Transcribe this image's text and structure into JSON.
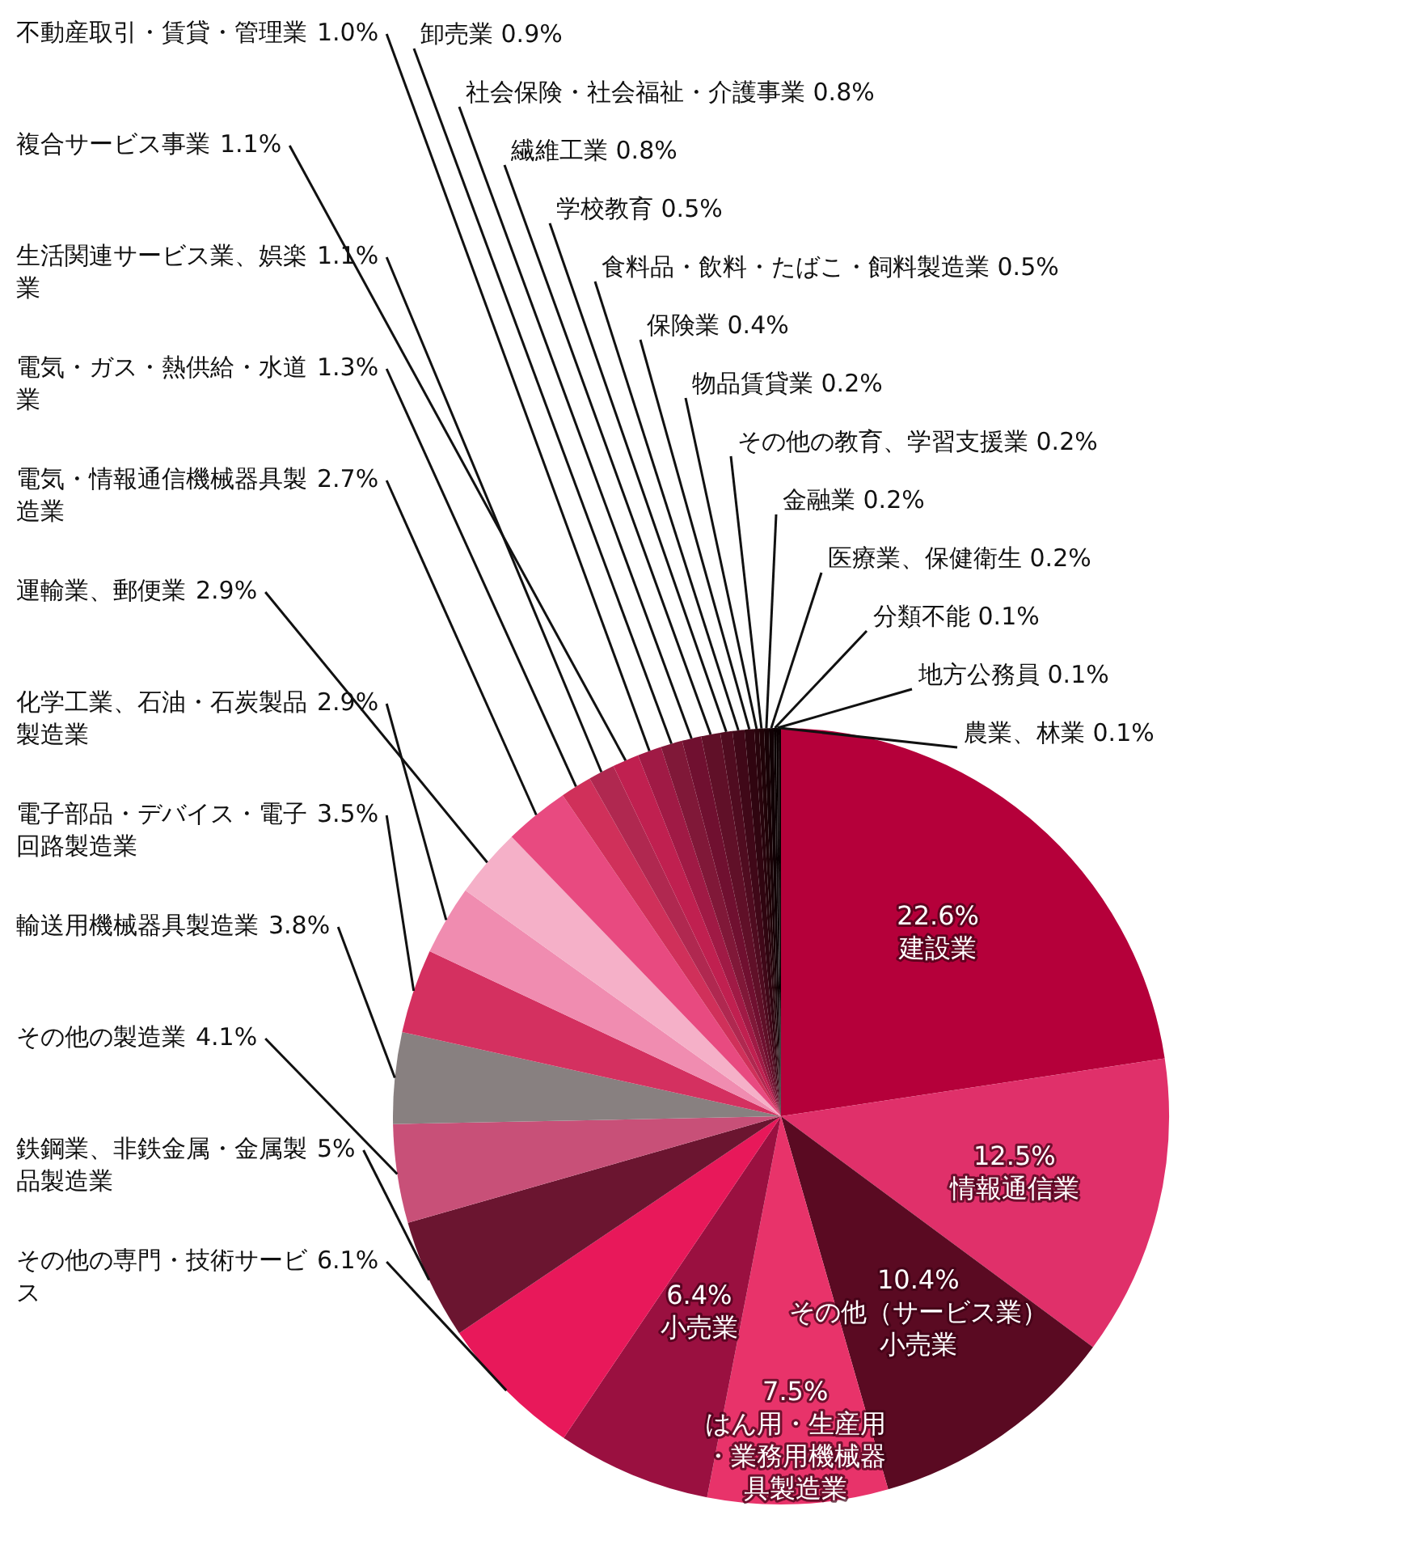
{
  "chart_data": {
    "type": "pie",
    "categories": [
      "建設業",
      "情報通信業",
      "その他（サービス業）小売業",
      "はん用・生産用・業務用機械器具製造業",
      "小売業",
      "その他の専門・技術サービス",
      "鉄鋼業、非鉄金属・金属製品製造業",
      "その他の製造業",
      "輸送用機械器具製造業",
      "電子部品・デバイス・電子回路製造業",
      "化学工業、石油・石炭製品製造業",
      "運輸業、郵便業",
      "電気・情報通信機械器具製造業",
      "電気・ガス・熱供給・水道業",
      "生活関連サービス業、娯楽業",
      "複合サービス事業",
      "不動産取引・賃貸・管理業",
      "卸売業",
      "社会保険・社会福祉・介護事業",
      "繊維工業",
      "学校教育",
      "食料品・飲料・たばこ・飼料製造業",
      "保険業",
      "物品賃貸業",
      "その他の教育、学習支援業",
      "金融業",
      "医療業、保健衛生",
      "分類不能",
      "地方公務員",
      "農業、林業"
    ],
    "values": [
      22.6,
      12.5,
      10.4,
      7.5,
      6.4,
      6.1,
      5,
      4.1,
      3.8,
      3.5,
      2.9,
      2.9,
      2.7,
      1.3,
      1.1,
      1.1,
      1.0,
      0.9,
      0.8,
      0.8,
      0.5,
      0.5,
      0.4,
      0.2,
      0.2,
      0.2,
      0.2,
      0.1,
      0.1,
      0.1
    ],
    "value_labels": [
      "22.6%",
      "12.5%",
      "10.4%",
      "7.5%",
      "6.4%",
      "6.1%",
      "5%",
      "4.1%",
      "3.8%",
      "3.5%",
      "2.9%",
      "2.9%",
      "2.7%",
      "1.3%",
      "1.1%",
      "1.1%",
      "1.0%",
      "0.9%",
      "0.8%",
      "0.8%",
      "0.5%",
      "0.5%",
      "0.4%",
      "0.2%",
      "0.2%",
      "0.2%",
      "0.2%",
      "0.1%",
      "0.1%",
      "0.1%"
    ],
    "colors": [
      "#b5003a",
      "#e0306a",
      "#5a0a22",
      "#e8336a",
      "#9a1040",
      "#e8185a",
      "#6b1530",
      "#c85078",
      "#888080",
      "#d43060",
      "#f08cb0",
      "#f5b0c8",
      "#e84a80",
      "#d0305a",
      "#b02850",
      "#c02050",
      "#a01a45",
      "#801838",
      "#701030",
      "#601028",
      "#500c20",
      "#400818",
      "#300510",
      "#28040c",
      "#200308",
      "#180206",
      "#100104",
      "#0a0002",
      "#0a0002",
      "#0a0002"
    ],
    "legend": false
  }
}
